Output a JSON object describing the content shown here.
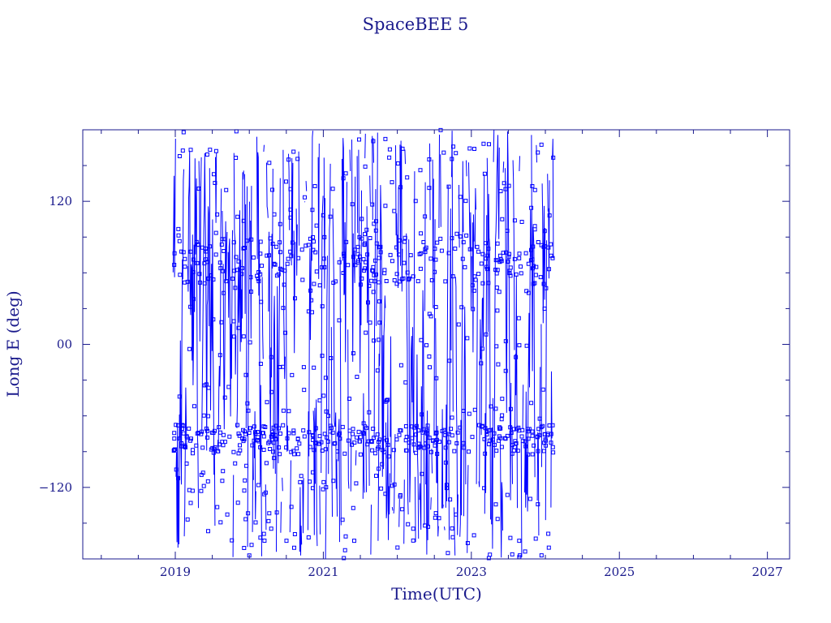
{
  "chart_data": {
    "type": "line",
    "title": "SpaceBEE 5",
    "xlabel": "Time(UTC)",
    "ylabel": "Long E (deg)",
    "xlim": [
      2017.75,
      2027.3
    ],
    "ylim": [
      -180,
      180
    ],
    "x_ticks": [
      {
        "value": 2019,
        "label": "2019"
      },
      {
        "value": 2021,
        "label": "2021"
      },
      {
        "value": 2023,
        "label": "2023"
      },
      {
        "value": 2025,
        "label": "2025"
      },
      {
        "value": 2027,
        "label": "2027"
      }
    ],
    "y_ticks": [
      {
        "value": 120,
        "label": "120"
      },
      {
        "value": 0,
        "label": "00"
      },
      {
        "value": -120,
        "label": "−120"
      }
    ],
    "grid": false,
    "series": [
      {
        "color": "#0000ff",
        "x_start": 2018.97,
        "x_end": 2024.12,
        "y_range": [
          -180,
          180
        ],
        "note_values": "dense, rapidly wrapping longitude trace"
      }
    ]
  },
  "colors": {
    "axis": "#1a1a8c",
    "data": "#0000ff",
    "background": "#ffffff"
  }
}
